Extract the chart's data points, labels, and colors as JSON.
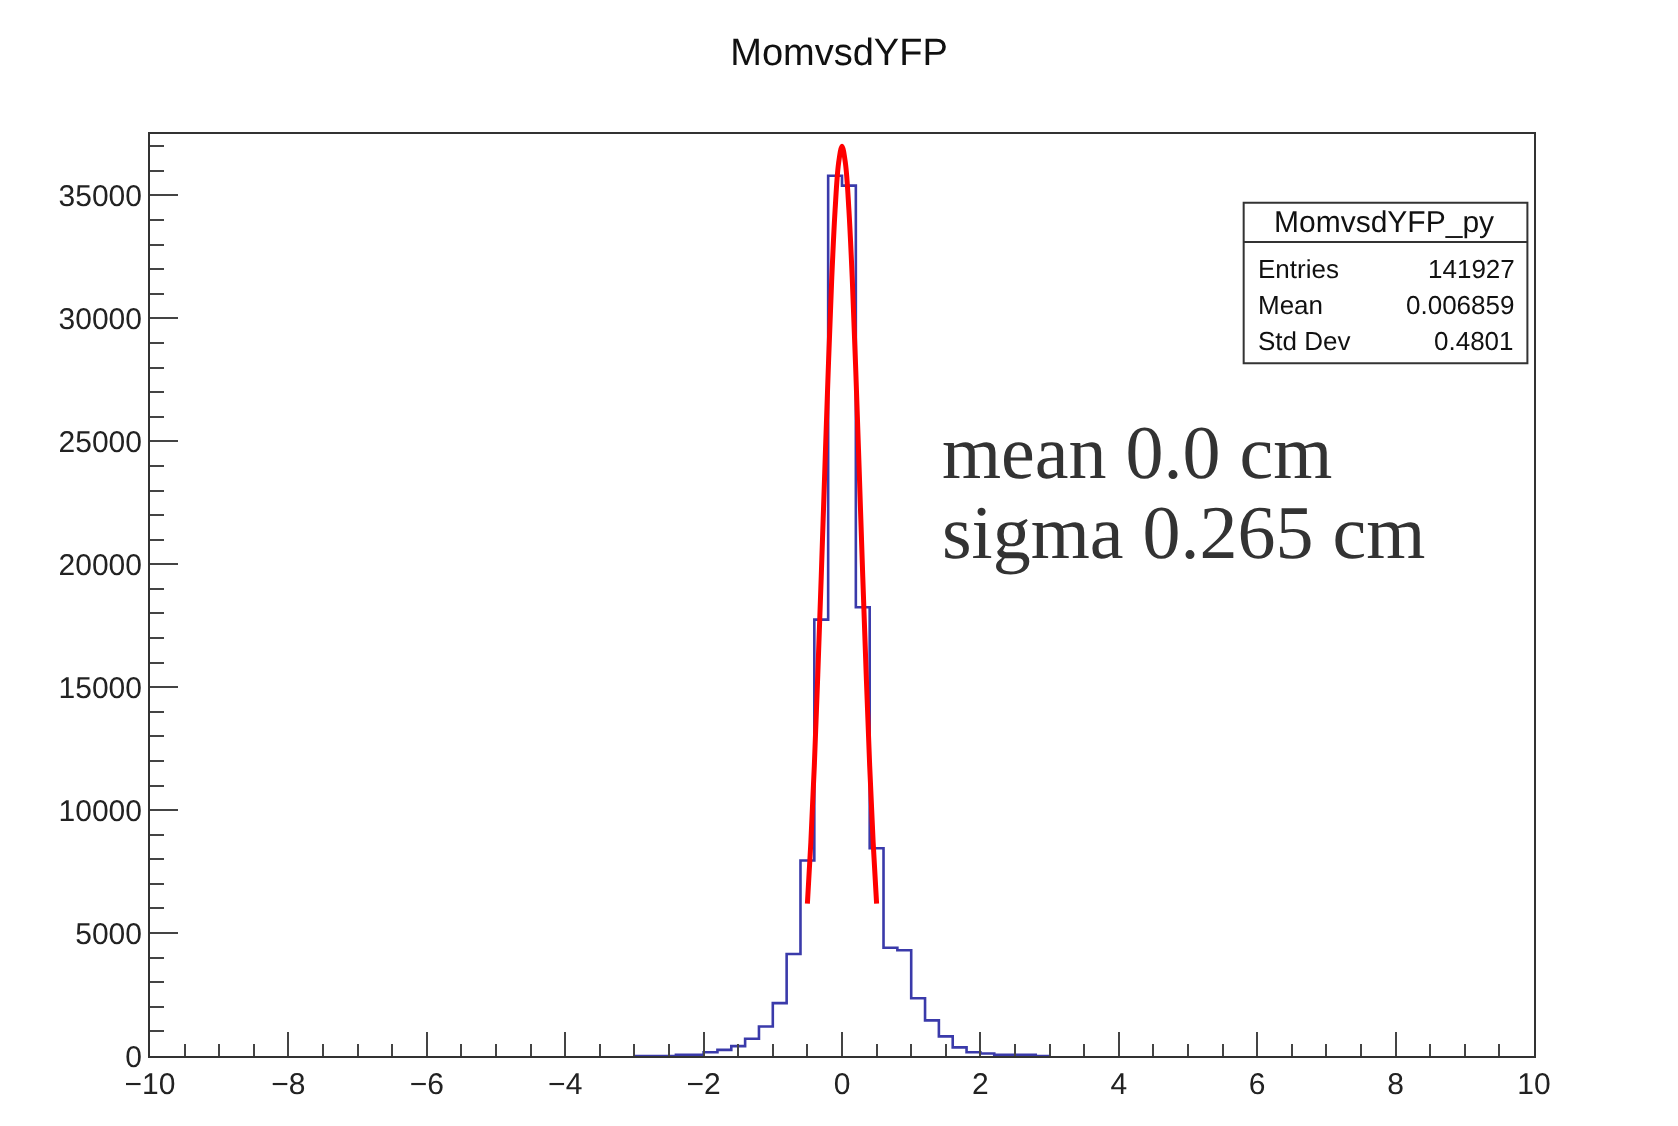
{
  "chart_data": {
    "type": "histogram",
    "title": "MomvsdYFP",
    "bins": [
      -3.0,
      -2.8,
      -2.6,
      -2.4,
      -2.2,
      -2.0,
      -1.8,
      -1.6,
      -1.4,
      -1.2,
      -1.0,
      -0.8,
      -0.6,
      -0.4,
      -0.2,
      0.0,
      0.2,
      0.4,
      0.6,
      0.8,
      1.0,
      1.2,
      1.4,
      1.6,
      1.8,
      2.0,
      2.2,
      2.4,
      2.6,
      2.8,
      3.0
    ],
    "values": [
      0,
      0,
      0,
      50,
      50,
      150,
      250,
      400,
      700,
      1200,
      2150,
      4150,
      7950,
      17750,
      35800,
      35400,
      18250,
      8450,
      4400,
      4300,
      2350,
      1450,
      800,
      350,
      150,
      100,
      50,
      50,
      50,
      0
    ],
    "color": "#3a3aaa",
    "series": [
      {
        "type": "line",
        "color": "#ff0000",
        "x": [
          -0.5,
          -0.45,
          -0.4,
          -0.35,
          -0.3,
          -0.25,
          -0.2,
          -0.15,
          -0.1,
          -0.05,
          0.0,
          0.05,
          0.1,
          0.15,
          0.2,
          0.25,
          0.3,
          0.35,
          0.4,
          0.45,
          0.5
        ],
        "values": [
          6200,
          8700,
          11800,
          15500,
          19500,
          23700,
          27800,
          31500,
          34400,
          36300,
          37000,
          36300,
          34400,
          31500,
          27800,
          23700,
          19500,
          15500,
          11800,
          8700,
          6200
        ]
      }
    ],
    "xlim": [
      -10,
      10
    ],
    "xticks": [
      {
        "value": -10,
        "label": "−10"
      },
      {
        "value": -8,
        "label": "−8"
      },
      {
        "value": -6,
        "label": "−6"
      },
      {
        "value": -4,
        "label": "−4"
      },
      {
        "value": -2,
        "label": "−2"
      },
      0,
      2,
      4,
      6,
      8,
      10
    ],
    "ylim": [
      0,
      37500
    ],
    "yticks": [
      0,
      5000,
      10000,
      15000,
      20000,
      25000,
      30000,
      35000
    ],
    "annotations": [
      "MomvsdYFP_py",
      "Entries",
      "141927",
      "Mean",
      "0.006859",
      "Std Dev",
      "0.4801",
      "mean 0.0 cm",
      "sigma 0.265 cm"
    ]
  }
}
